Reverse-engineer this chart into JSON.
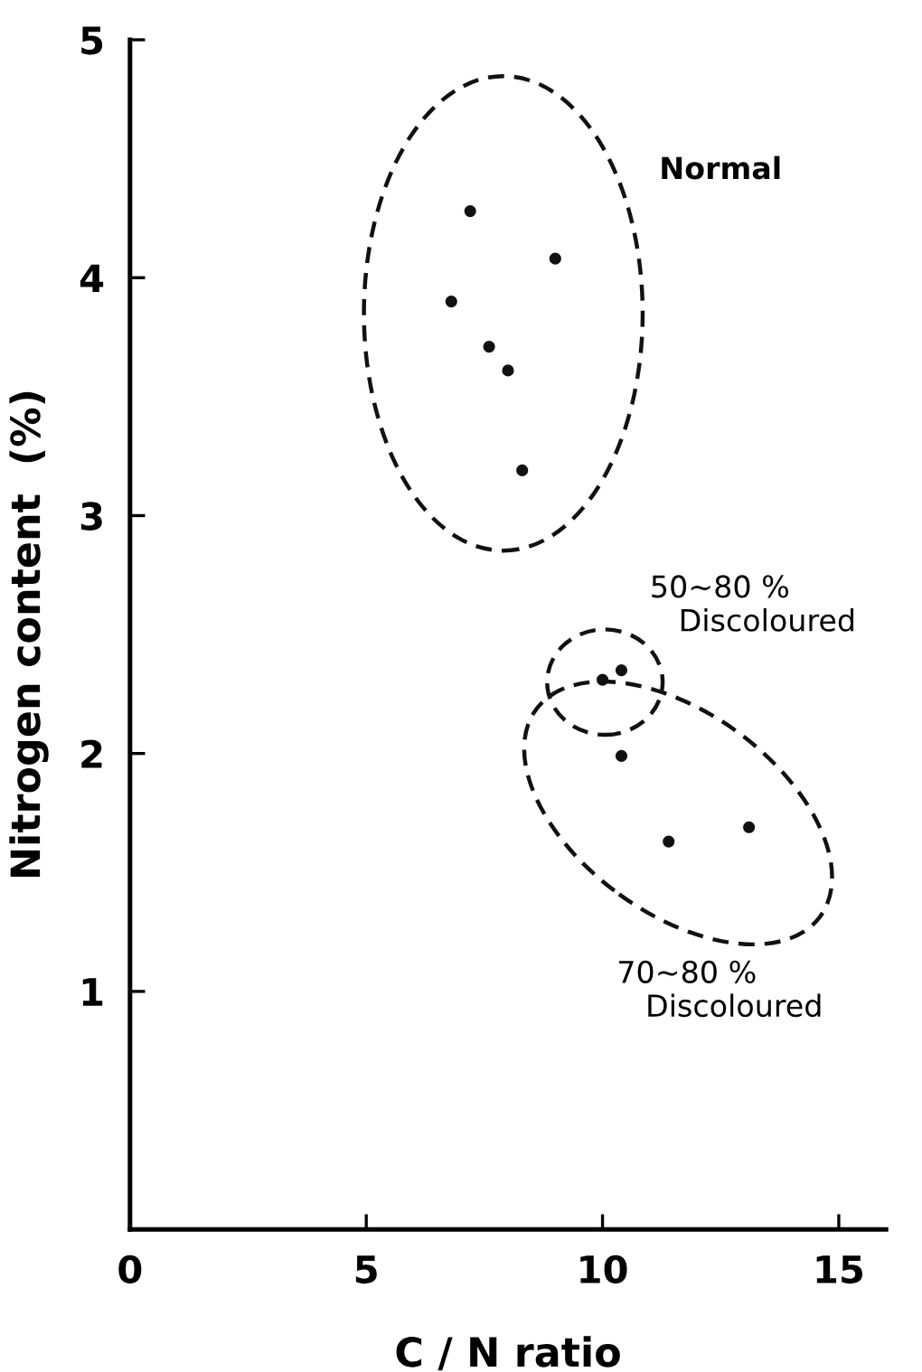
{
  "chart_data": {
    "type": "scatter",
    "xlabel": "C / N ratio",
    "ylabel": "Nitrogen content  (%)",
    "x": [
      7.2,
      9.0,
      6.8,
      7.6,
      8.0,
      8.3,
      10.0,
      10.4,
      10.4,
      11.4,
      13.1
    ],
    "series": [
      {
        "color": "#111111",
        "values": [
          4.28,
          4.08,
          3.9,
          3.71,
          3.61,
          3.19,
          2.31,
          2.35,
          1.99,
          1.63,
          1.69
        ]
      }
    ],
    "xlim": [
      0,
      16
    ],
    "ylim": [
      0,
      5
    ],
    "xticks": [
      0,
      5,
      10,
      15
    ],
    "yticks": [
      1,
      2,
      3,
      4,
      5
    ],
    "marker": "circle",
    "grid": false,
    "legend": false,
    "annotations": [
      "Normal",
      "50~80 %\n   Discoloured",
      "70~80 %\n   Discoloured"
    ]
  }
}
